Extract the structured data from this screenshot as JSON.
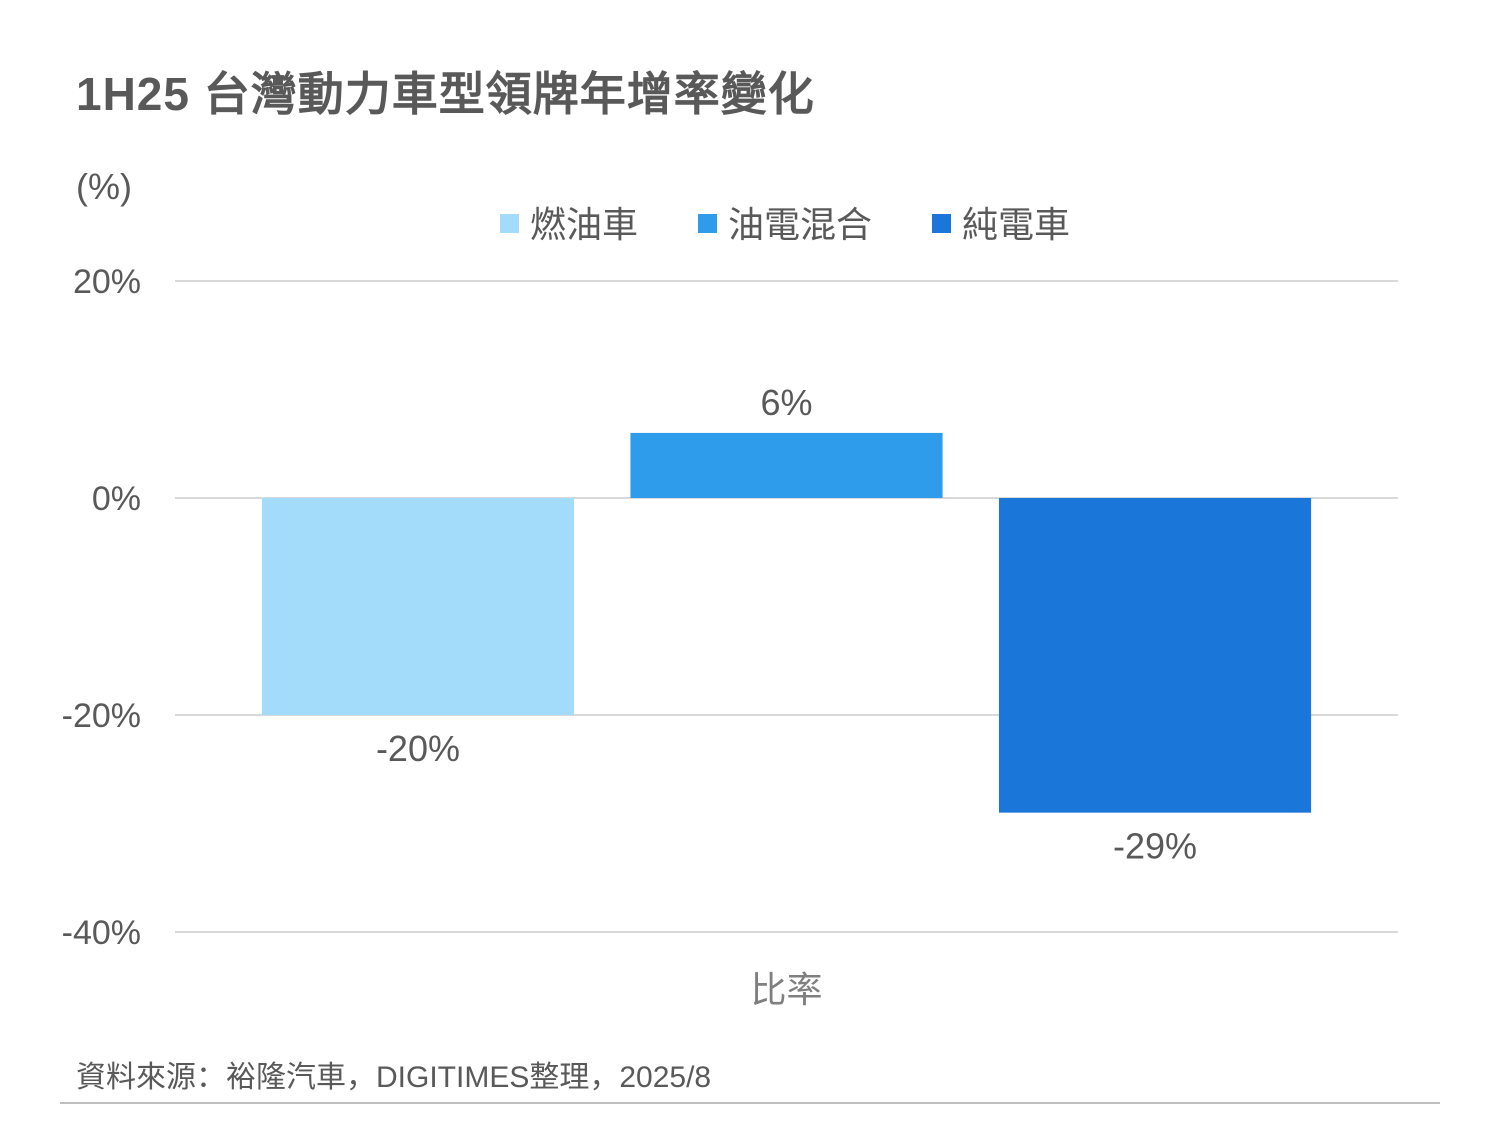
{
  "title": "1H25 台灣動力車型領牌年增率變化",
  "unit_label": "(%)",
  "source": "資料來源：裕隆汽車，DIGITIMES整理，2025/8",
  "chart_data": {
    "type": "bar",
    "categories": [
      "比率"
    ],
    "series": [
      {
        "name": "燃油車",
        "values": [
          -20
        ],
        "label": "-20%",
        "color": "#a3dbfa"
      },
      {
        "name": "油電混合",
        "values": [
          6
        ],
        "label": "6%",
        "color": "#2f9ceb"
      },
      {
        "name": "純電車",
        "values": [
          -29
        ],
        "label": "-29%",
        "color": "#1a77d9"
      }
    ],
    "ylim": [
      -40,
      20
    ],
    "yticks": [
      20,
      0,
      -20,
      -40
    ],
    "ytick_labels": [
      "20%",
      "0%",
      "-20%",
      "-40%"
    ],
    "grid": true,
    "legend_position": "top"
  }
}
